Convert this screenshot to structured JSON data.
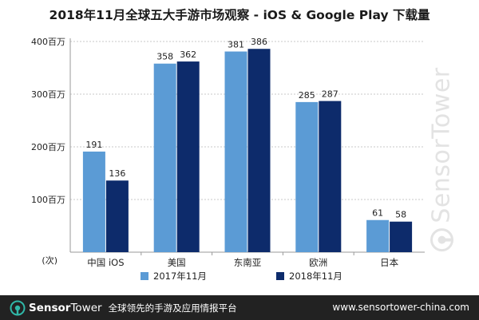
{
  "chart_data": {
    "type": "bar",
    "title": "2018年11月全球五大手游市场观察 - iOS & Google Play 下载量",
    "categories": [
      "中国 iOS",
      "美国",
      "东南亚",
      "欧洲",
      "日本"
    ],
    "series": [
      {
        "name": "2017年11月",
        "values": [
          191,
          358,
          381,
          285,
          61
        ],
        "color": "#5b9bd5"
      },
      {
        "name": "2018年11月",
        "values": [
          136,
          362,
          386,
          287,
          58
        ],
        "color": "#0d2b6b"
      }
    ],
    "ylim": [
      0,
      400
    ],
    "yticks": [
      {
        "value": 100,
        "label": "100百万"
      },
      {
        "value": 200,
        "label": "200百万"
      },
      {
        "value": 300,
        "label": "300百万"
      },
      {
        "value": 400,
        "label": "400百万"
      }
    ],
    "y_unit_label": "(次)",
    "grid": true,
    "legend_position": "bottom-center"
  },
  "watermark": {
    "text": "SensorTower",
    "icon": "sensortower-logo-icon"
  },
  "footer": {
    "brand_part1": "Sensor",
    "brand_part2": "Tower",
    "slogan": "全球领先的手游及应用情报平台",
    "url": "www.sensortower-china.com",
    "icon": "sensortower-logo-icon",
    "background_color": "#222222",
    "logo_color": "#30b8a8"
  }
}
